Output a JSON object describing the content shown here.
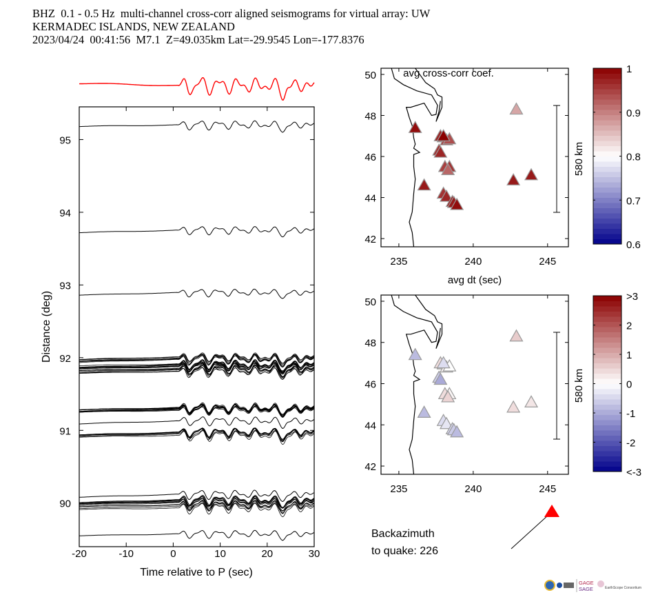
{
  "header": {
    "line1": "BHZ  0.1 - 0.5 Hz  multi-channel cross-corr aligned seismograms for virtual array: UW",
    "line2": "KERMADEC ISLANDS, NEW ZEALAND",
    "line3": "2023/04/24  00:41:56  M7.1  Z=49.035km Lat=-29.9545 Lon=-177.8376"
  },
  "colors": {
    "stack_trace": "#ff0000",
    "trace": "#000000",
    "quake_marker": "#ff0000",
    "cmap_low": "#00008b",
    "cmap_mid": "#ffffff",
    "cmap_high": "#8b0000"
  },
  "backazimuth": {
    "line1": "Backazimuth",
    "line2": "to quake:  226",
    "value_deg": 226
  },
  "logos": [
    "NSF",
    "NASA",
    "DOE",
    "GAGE",
    "SAGE",
    "EarthScope Consortium"
  ],
  "chart_data": [
    {
      "type": "line",
      "name": "seismogram-section",
      "title": "",
      "xlabel": "Time relative to P (sec)",
      "ylabel": "Distance (deg)",
      "xlim": [
        -20,
        30
      ],
      "ylim": [
        89.4,
        95.45
      ],
      "xticks": [
        -20,
        -10,
        0,
        10,
        20,
        30
      ],
      "yticks": [
        90,
        91,
        92,
        93,
        94,
        95
      ],
      "stack_trace": {
        "label": "stacked beam",
        "color": "red"
      },
      "trace_groups": [
        {
          "distance": 95.18,
          "count": 1
        },
        {
          "distance": 93.72,
          "count": 1
        },
        {
          "distance": 92.86,
          "count": 1
        },
        {
          "distance": 91.88,
          "count": 22,
          "spread": 0.2
        },
        {
          "distance": 91.27,
          "count": 10,
          "spread": 0.04
        },
        {
          "distance": 91.09,
          "count": 1
        },
        {
          "distance": 90.93,
          "count": 8,
          "spread": 0.05
        },
        {
          "distance": 90.08,
          "count": 1
        },
        {
          "distance": 89.96,
          "count": 12,
          "spread": 0.1
        },
        {
          "distance": 89.55,
          "count": 1
        }
      ]
    },
    {
      "type": "scatter",
      "name": "avg-cross-corr-map",
      "title": "avg cross-corr coef.",
      "xlabel": "avg dt (sec)",
      "ylabel": "",
      "xlim": [
        233.8,
        246.4
      ],
      "ylim": [
        41.6,
        50.3
      ],
      "xticks": [
        235,
        240,
        245
      ],
      "yticks": [
        42,
        44,
        46,
        48,
        50
      ],
      "scale_bar": "580 km",
      "colorbar": {
        "min": 0.6,
        "max": 1.0,
        "ticks": [
          "0.6",
          "0.7",
          "0.8",
          "0.9",
          "1"
        ]
      },
      "points": [
        {
          "x": 236.1,
          "y": 47.4,
          "v": 0.99
        },
        {
          "x": 236.7,
          "y": 44.6,
          "v": 0.98
        },
        {
          "x": 237.8,
          "y": 47.0,
          "v": 0.97
        },
        {
          "x": 238.0,
          "y": 46.95,
          "v": 0.98
        },
        {
          "x": 238.2,
          "y": 46.8,
          "v": 0.95
        },
        {
          "x": 238.4,
          "y": 46.85,
          "v": 0.94
        },
        {
          "x": 238.0,
          "y": 47.0,
          "v": 1.0
        },
        {
          "x": 237.7,
          "y": 46.3,
          "v": 0.96
        },
        {
          "x": 237.8,
          "y": 46.2,
          "v": 0.97
        },
        {
          "x": 238.1,
          "y": 45.5,
          "v": 0.95
        },
        {
          "x": 238.4,
          "y": 45.5,
          "v": 0.96
        },
        {
          "x": 238.3,
          "y": 45.35,
          "v": 0.92
        },
        {
          "x": 238.0,
          "y": 44.2,
          "v": 0.96
        },
        {
          "x": 238.2,
          "y": 44.05,
          "v": 0.97
        },
        {
          "x": 238.6,
          "y": 43.8,
          "v": 0.97
        },
        {
          "x": 238.7,
          "y": 43.75,
          "v": 0.98
        },
        {
          "x": 238.9,
          "y": 43.65,
          "v": 0.99
        },
        {
          "x": 242.7,
          "y": 44.85,
          "v": 0.98
        },
        {
          "x": 243.9,
          "y": 45.1,
          "v": 0.98
        },
        {
          "x": 242.9,
          "y": 48.3,
          "v": 0.87
        }
      ]
    },
    {
      "type": "scatter",
      "name": "avg-dt-map",
      "title": "avg dt (sec)",
      "xlabel": "",
      "ylabel": "",
      "xlim": [
        233.8,
        246.4
      ],
      "ylim": [
        41.6,
        50.3
      ],
      "xticks": [
        235,
        240,
        245
      ],
      "yticks": [
        42,
        44,
        46,
        48,
        50
      ],
      "scale_bar": "580 km",
      "colorbar": {
        "min": -3,
        "max": 3,
        "ticks": [
          "<-3",
          "-2",
          "-1",
          "0",
          "1",
          "2",
          ">3"
        ]
      },
      "points": [
        {
          "x": 236.1,
          "y": 47.4,
          "v": -0.8
        },
        {
          "x": 236.7,
          "y": 44.6,
          "v": -0.8
        },
        {
          "x": 237.8,
          "y": 47.0,
          "v": 0.4
        },
        {
          "x": 238.0,
          "y": 46.95,
          "v": 0.2
        },
        {
          "x": 238.2,
          "y": 46.8,
          "v": 0.1
        },
        {
          "x": 238.4,
          "y": 46.85,
          "v": 0.0
        },
        {
          "x": 238.0,
          "y": 47.0,
          "v": -0.4
        },
        {
          "x": 237.7,
          "y": 46.3,
          "v": -0.6
        },
        {
          "x": 237.8,
          "y": 46.2,
          "v": -1.0
        },
        {
          "x": 238.1,
          "y": 45.5,
          "v": 0.4
        },
        {
          "x": 238.4,
          "y": 45.5,
          "v": 0.1
        },
        {
          "x": 238.3,
          "y": 45.35,
          "v": 0.5
        },
        {
          "x": 238.0,
          "y": 44.2,
          "v": -0.4
        },
        {
          "x": 238.2,
          "y": 44.05,
          "v": -0.3
        },
        {
          "x": 238.6,
          "y": 43.8,
          "v": -0.5
        },
        {
          "x": 238.7,
          "y": 43.75,
          "v": -0.6
        },
        {
          "x": 238.9,
          "y": 43.65,
          "v": -0.8
        },
        {
          "x": 242.7,
          "y": 44.85,
          "v": 0.4
        },
        {
          "x": 243.9,
          "y": 45.1,
          "v": 0.3
        },
        {
          "x": 242.9,
          "y": 48.3,
          "v": 0.6
        }
      ]
    }
  ]
}
